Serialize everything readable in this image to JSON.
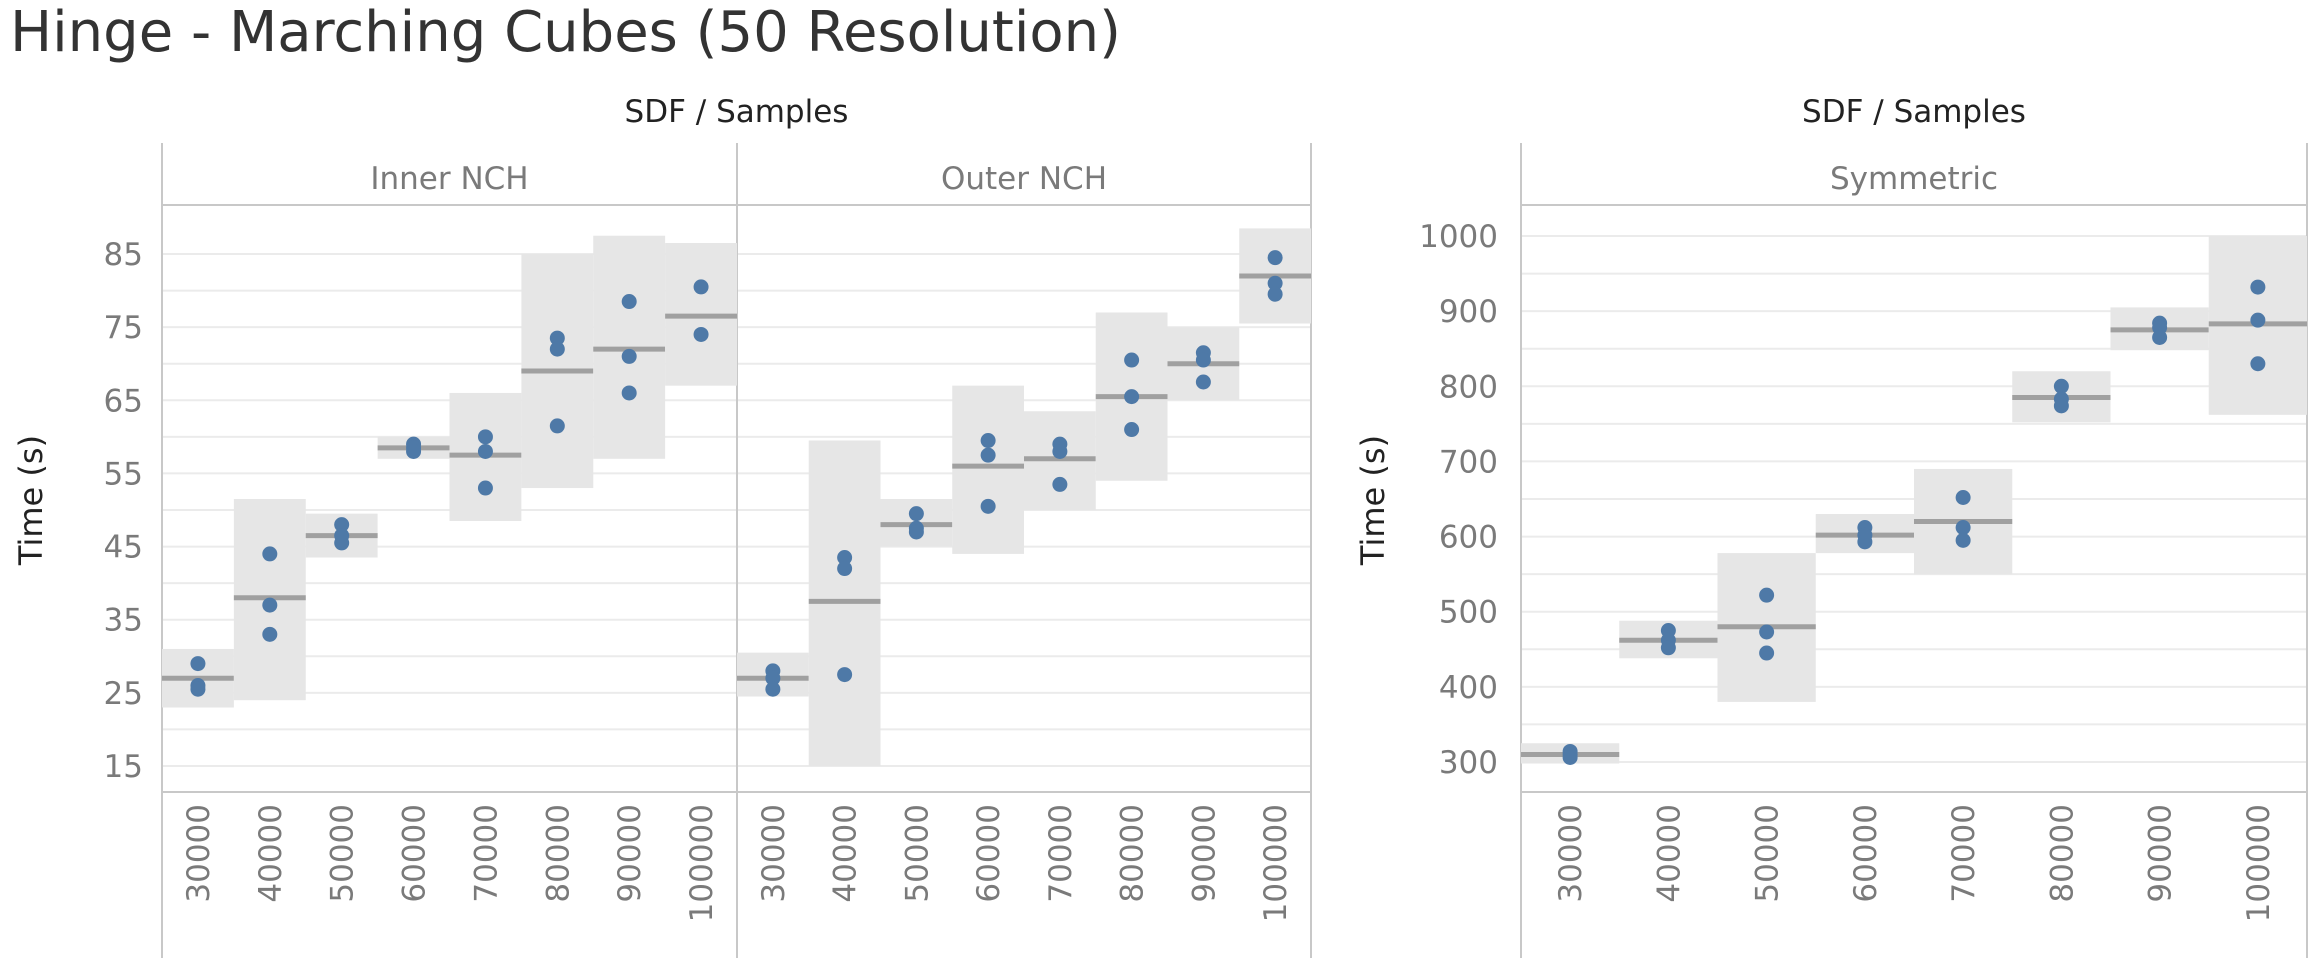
{
  "title": "Hinge - Marching Cubes (50 Resolution)",
  "colors": {
    "dot": "#4e79a7",
    "band": "#e6e6e6",
    "reference_line": "#a0a0a0"
  },
  "chart_data": [
    {
      "type": "scatter",
      "header": "SDF / Samples",
      "ylabel": "Time (s)",
      "ylim": [
        12,
        90
      ],
      "yticks": [
        15,
        25,
        35,
        45,
        55,
        65,
        75,
        85
      ],
      "categories": [
        "30000",
        "40000",
        "50000",
        "60000",
        "70000",
        "80000",
        "90000",
        "100000"
      ],
      "panels": [
        {
          "label": "Inner NCH",
          "series": [
            {
              "category": "30000",
              "points": [
                29,
                26,
                25.5
              ],
              "mean": 27,
              "band": [
                23,
                31
              ]
            },
            {
              "category": "40000",
              "points": [
                44,
                37,
                33
              ],
              "mean": 38,
              "band": [
                24,
                51.5
              ]
            },
            {
              "category": "50000",
              "points": [
                48,
                46.5,
                45.5
              ],
              "mean": 46.5,
              "band": [
                43.5,
                49.5
              ]
            },
            {
              "category": "60000",
              "points": [
                59,
                58.5,
                58
              ],
              "mean": 58.5,
              "band": [
                57,
                60
              ]
            },
            {
              "category": "70000",
              "points": [
                60,
                58,
                53
              ],
              "mean": 57.5,
              "band": [
                48.5,
                66
              ]
            },
            {
              "category": "80000",
              "points": [
                73.5,
                72,
                61.5
              ],
              "mean": 69,
              "band": [
                53,
                85
              ]
            },
            {
              "category": "90000",
              "points": [
                78.5,
                71,
                66
              ],
              "mean": 72,
              "band": [
                57,
                87.5
              ]
            },
            {
              "category": "100000",
              "points": [
                80.5,
                74
              ],
              "mean": 76.5,
              "band": [
                67,
                86.5
              ]
            }
          ]
        },
        {
          "label": "Outer NCH",
          "series": [
            {
              "category": "30000",
              "points": [
                28,
                27,
                25.5
              ],
              "mean": 27,
              "band": [
                24.5,
                30.5
              ]
            },
            {
              "category": "40000",
              "points": [
                43.5,
                42,
                27.5
              ],
              "mean": 37.5,
              "band": [
                15,
                59.5
              ]
            },
            {
              "category": "50000",
              "points": [
                49.5,
                47.5,
                47
              ],
              "mean": 48,
              "band": [
                45,
                51.5
              ]
            },
            {
              "category": "60000",
              "points": [
                59.5,
                57.5,
                50.5
              ],
              "mean": 56,
              "band": [
                44,
                67
              ]
            },
            {
              "category": "70000",
              "points": [
                59,
                58,
                53.5
              ],
              "mean": 57,
              "band": [
                50,
                63.5
              ]
            },
            {
              "category": "80000",
              "points": [
                70.5,
                65.5,
                61
              ],
              "mean": 65.5,
              "band": [
                54,
                77
              ]
            },
            {
              "category": "90000",
              "points": [
                71.5,
                70.5,
                67.5
              ],
              "mean": 70,
              "band": [
                65,
                75
              ]
            },
            {
              "category": "100000",
              "points": [
                84.5,
                81,
                79.5
              ],
              "mean": 82,
              "band": [
                75.5,
                88.5
              ]
            }
          ]
        }
      ]
    },
    {
      "type": "scatter",
      "header": "SDF / Samples",
      "ylabel": "Time (s)",
      "ylim": [
        265,
        1035
      ],
      "yticks": [
        300,
        400,
        500,
        600,
        700,
        800,
        900,
        1000
      ],
      "categories": [
        "30000",
        "40000",
        "50000",
        "60000",
        "70000",
        "80000",
        "90000",
        "100000"
      ],
      "panels": [
        {
          "label": "Symmetric",
          "series": [
            {
              "category": "30000",
              "points": [
                314,
                310,
                306
              ],
              "mean": 310,
              "band": [
                298,
                325
              ]
            },
            {
              "category": "40000",
              "points": [
                475,
                462,
                452
              ],
              "mean": 462,
              "band": [
                438,
                488
              ]
            },
            {
              "category": "50000",
              "points": [
                522,
                473,
                445
              ],
              "mean": 480,
              "band": [
                380,
                578
              ]
            },
            {
              "category": "60000",
              "points": [
                612,
                602,
                593
              ],
              "mean": 602,
              "band": [
                578,
                630
              ]
            },
            {
              "category": "70000",
              "points": [
                652,
                612,
                595
              ],
              "mean": 620,
              "band": [
                550,
                690
              ]
            },
            {
              "category": "80000",
              "points": [
                800,
                783,
                774
              ],
              "mean": 785,
              "band": [
                752,
                820
              ]
            },
            {
              "category": "90000",
              "points": [
                884,
                878,
                865
              ],
              "mean": 875,
              "band": [
                848,
                905
              ]
            },
            {
              "category": "100000",
              "points": [
                932,
                888,
                830
              ],
              "mean": 883,
              "band": [
                762,
                1000
              ]
            }
          ]
        }
      ]
    }
  ]
}
